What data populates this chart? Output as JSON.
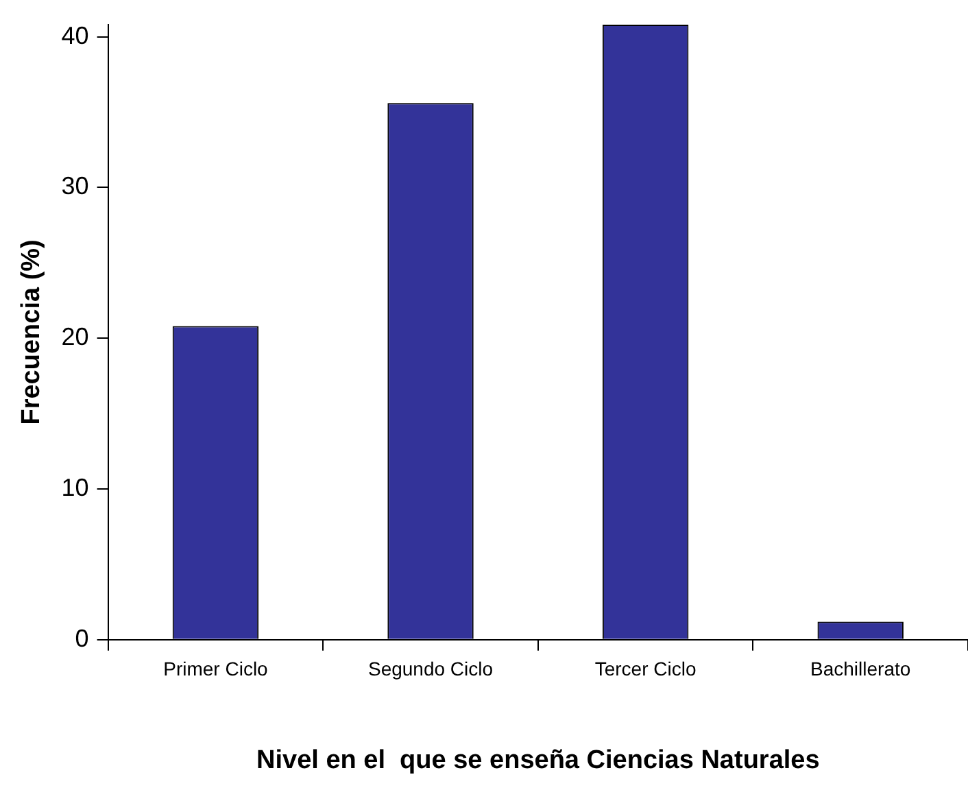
{
  "chart_data": {
    "type": "bar",
    "xlabel": "Nivel en el  que se enseña Ciencias Naturales",
    "ylabel": "Frecuencia (%)",
    "categories": [
      "Primer Ciclo",
      "Segundo Ciclo",
      "Tercer Ciclo",
      "Bachillerato"
    ],
    "values": [
      20.8,
      35.6,
      40.8,
      1.2
    ],
    "color": "#333399",
    "ylim": [
      0,
      40.8
    ],
    "yticks": [
      0,
      10,
      20,
      30,
      40
    ],
    "grid": false,
    "legend": false
  }
}
